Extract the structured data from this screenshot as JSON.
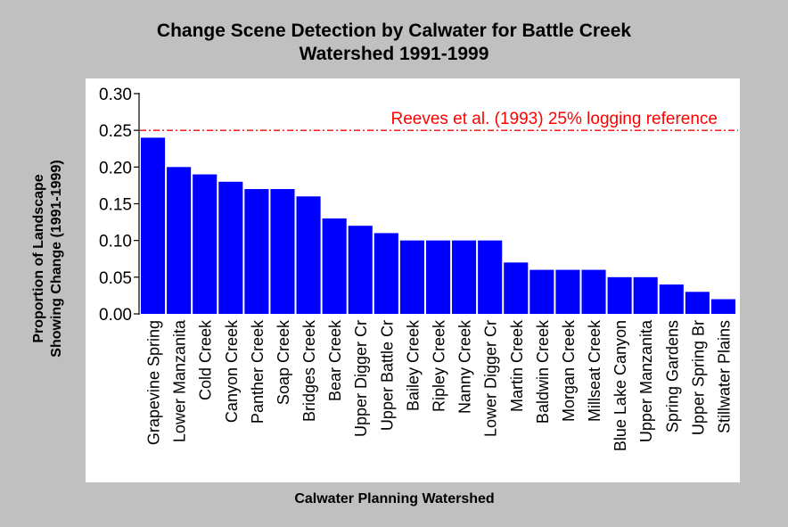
{
  "chart_data": {
    "type": "bar",
    "title_lines": [
      "Change Scene Detection by Calwater for Battle Creek",
      "Watershed 1991-1999"
    ],
    "xlabel": "Calwater Planning Watershed",
    "ylabel_lines": [
      "Proportion of Landscape",
      "Showing Change (1991-1999)"
    ],
    "categories": [
      "Grapevine Spring",
      "Lower Manzanita",
      "Cold Creek",
      "Canyon Creek",
      "Panther Creek",
      "Soap Creek",
      "Bridges Creek",
      "Bear Creek",
      "Upper Digger Cr",
      "Upper Battle Cr",
      "Bailey Creek",
      "Ripley Creek",
      "Nanny Creek",
      "Lower Digger Cr",
      "Martin Creek",
      "Baldwin Creek",
      "Morgan Creek",
      "Millseat Creek",
      "Blue Lake Canyon",
      "Upper Manzanita",
      "Spring Gardens",
      "Upper Spring Br",
      "Stillwater Plains"
    ],
    "values": [
      0.24,
      0.2,
      0.19,
      0.18,
      0.17,
      0.17,
      0.16,
      0.13,
      0.12,
      0.11,
      0.1,
      0.1,
      0.1,
      0.1,
      0.07,
      0.06,
      0.06,
      0.06,
      0.05,
      0.05,
      0.04,
      0.03,
      0.02
    ],
    "ylim": [
      0,
      0.3
    ],
    "yticks": [
      "0.00",
      "0.05",
      "0.10",
      "0.15",
      "0.20",
      "0.25",
      "0.30"
    ],
    "grid": false,
    "bar_color": "#0000ff",
    "reference_line": {
      "value": 0.25,
      "label": "Reeves et al. (1993) 25% logging reference",
      "color": "#ff0000"
    }
  }
}
